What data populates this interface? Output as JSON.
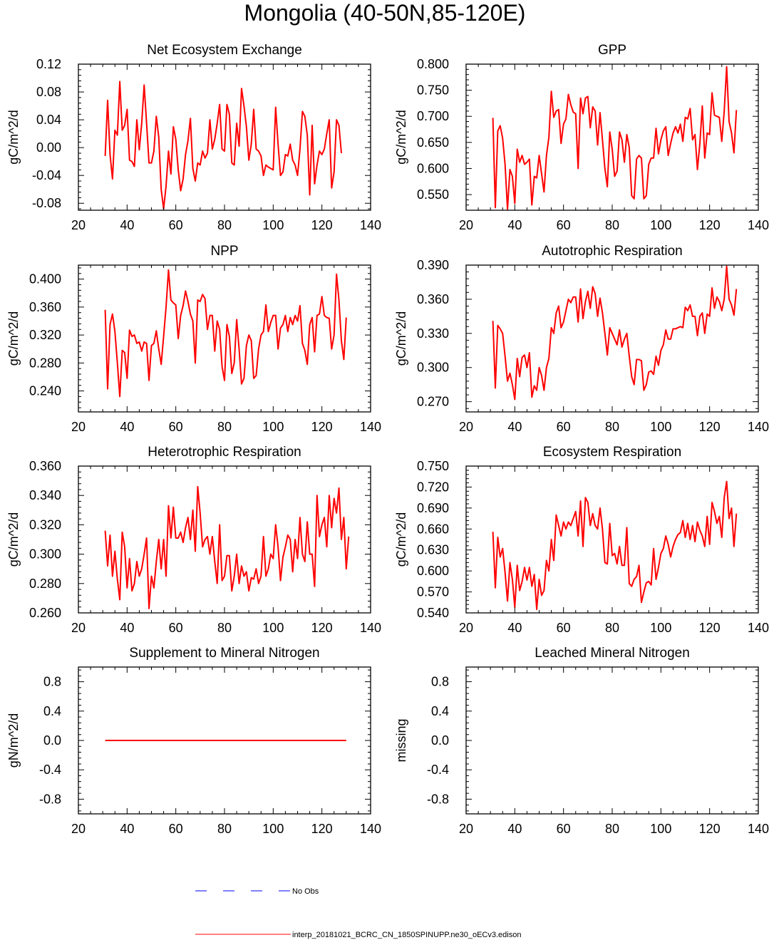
{
  "figure_title": "Mongolia (40-50N,85-120E)",
  "legend": [
    {
      "label": "No Obs",
      "color": "#0000ff",
      "dash": true
    },
    {
      "label": "interp_20181021_BCRC_CN_1850SPINUPP.ne30_oECv3.edison",
      "color": "#ff0000",
      "dash": false
    }
  ],
  "chart_data": [
    {
      "type": "line",
      "title": "Net Ecosystem Exchange",
      "xlabel": "",
      "ylabel": "gC/m^2/d",
      "xlim": [
        20,
        140
      ],
      "ylim": [
        -0.09,
        0.12
      ],
      "xticks": [
        20,
        40,
        60,
        80,
        100,
        120,
        140
      ],
      "xtick_labels": [
        "20",
        "40",
        "60",
        "80",
        "100",
        "120",
        "140"
      ],
      "yticks": [
        -0.08,
        -0.04,
        0.0,
        0.04,
        0.08,
        0.12
      ],
      "ytick_labels": [
        "-0.08",
        "-0.04",
        "0.00",
        "0.04",
        "0.08",
        "0.12"
      ],
      "series": [
        {
          "name": "interp_20181021_BCRC_CN_1850SPINUPP.ne30_oECv3.edison",
          "color": "#ff0000",
          "x0": 31,
          "values": [
            -0.012,
            0.068,
            -0.01,
            -0.045,
            0.025,
            0.018,
            0.095,
            0.025,
            0.032,
            0.055,
            -0.018,
            -0.02,
            -0.027,
            0.04,
            -0.003,
            0.035,
            0.09,
            0.035,
            -0.022,
            -0.022,
            -0.005,
            0.045,
            0.015,
            -0.06,
            -0.088,
            -0.055,
            -0.005,
            -0.038,
            0.03,
            0.012,
            -0.032,
            -0.062,
            -0.045,
            -0.01,
            0.01,
            0.042,
            -0.03,
            -0.048,
            -0.022,
            -0.025,
            -0.005,
            -0.015,
            -0.008,
            0.04,
            -0.002,
            0.012,
            0.035,
            0.062,
            -0.002,
            -0.005,
            0.062,
            0.048,
            -0.022,
            -0.025,
            0.035,
            0.002,
            0.085,
            0.06,
            0.03,
            -0.018,
            0.005,
            0.055,
            -0.002,
            -0.005,
            -0.012,
            -0.04,
            -0.025,
            -0.028,
            -0.03,
            -0.032,
            0.058,
            0.005,
            -0.04,
            -0.035,
            -0.01,
            -0.012,
            0.005,
            -0.018,
            -0.025,
            -0.04,
            -0.002,
            0.052,
            0.045,
            0.018,
            -0.068,
            0.032,
            -0.052,
            -0.025,
            -0.005,
            -0.01,
            -0.002,
            0.02,
            0.04,
            -0.058,
            -0.035,
            0.04,
            0.032,
            -0.008
          ]
        }
      ]
    },
    {
      "type": "line",
      "title": "GPP",
      "xlabel": "",
      "ylabel": "gC/m^2/d",
      "xlim": [
        20,
        140
      ],
      "ylim": [
        0.52,
        0.8
      ],
      "xticks": [
        20,
        40,
        60,
        80,
        100,
        120,
        140
      ],
      "xtick_labels": [
        "20",
        "40",
        "60",
        "80",
        "100",
        "120",
        "140"
      ],
      "yticks": [
        0.55,
        0.6,
        0.65,
        0.7,
        0.75,
        0.8
      ],
      "ytick_labels": [
        "0.550",
        "0.600",
        "0.650",
        "0.700",
        "0.750",
        "0.800"
      ],
      "series": [
        {
          "name": "interp_20181021_BCRC_CN_1850SPINUPP.ne30_oECv3.edison",
          "color": "#ff0000",
          "x0": 31,
          "values": [
            0.697,
            0.525,
            0.672,
            0.682,
            0.658,
            0.608,
            0.522,
            0.598,
            0.585,
            0.533,
            0.637,
            0.612,
            0.625,
            0.608,
            0.612,
            0.618,
            0.53,
            0.585,
            0.582,
            0.625,
            0.59,
            0.555,
            0.625,
            0.66,
            0.748,
            0.698,
            0.71,
            0.713,
            0.648,
            0.685,
            0.695,
            0.742,
            0.722,
            0.708,
            0.705,
            0.6,
            0.735,
            0.705,
            0.735,
            0.738,
            0.678,
            0.718,
            0.71,
            0.645,
            0.707,
            0.655,
            0.6,
            0.565,
            0.67,
            0.637,
            0.585,
            0.595,
            0.67,
            0.655,
            0.612,
            0.665,
            0.64,
            0.548,
            0.542,
            0.618,
            0.625,
            0.62,
            0.542,
            0.548,
            0.608,
            0.62,
            0.62,
            0.677,
            0.628,
            0.655,
            0.672,
            0.68,
            0.625,
            0.648,
            0.668,
            0.68,
            0.668,
            0.685,
            0.652,
            0.698,
            0.695,
            0.715,
            0.655,
            0.665,
            0.598,
            0.648,
            0.72,
            0.62,
            0.668,
            0.665,
            0.745,
            0.702,
            0.7,
            0.698,
            0.652,
            0.71,
            0.795,
            0.69,
            0.668,
            0.63,
            0.712
          ]
        }
      ]
    },
    {
      "type": "line",
      "title": "NPP",
      "xlabel": "",
      "ylabel": "gC/m^2/d",
      "xlim": [
        20,
        140
      ],
      "ylim": [
        0.21,
        0.42
      ],
      "xticks": [
        20,
        40,
        60,
        80,
        100,
        120,
        140
      ],
      "xtick_labels": [
        "20",
        "40",
        "60",
        "80",
        "100",
        "120",
        "140"
      ],
      "yticks": [
        0.24,
        0.28,
        0.32,
        0.36,
        0.4
      ],
      "ytick_labels": [
        "0.240",
        "0.280",
        "0.320",
        "0.360",
        "0.400"
      ],
      "series": [
        {
          "name": "interp_20181021_BCRC_CN_1850SPINUPP.ne30_oECv3.edison",
          "color": "#ff0000",
          "x0": 31,
          "values": [
            0.356,
            0.243,
            0.335,
            0.35,
            0.325,
            0.28,
            0.232,
            0.298,
            0.295,
            0.258,
            0.327,
            0.318,
            0.32,
            0.308,
            0.31,
            0.297,
            0.31,
            0.308,
            0.255,
            0.305,
            0.308,
            0.326,
            0.3,
            0.278,
            0.318,
            0.36,
            0.413,
            0.37,
            0.366,
            0.363,
            0.315,
            0.348,
            0.362,
            0.383,
            0.368,
            0.35,
            0.34,
            0.28,
            0.37,
            0.368,
            0.378,
            0.372,
            0.328,
            0.348,
            0.348,
            0.297,
            0.34,
            0.328,
            0.275,
            0.255,
            0.335,
            0.318,
            0.265,
            0.28,
            0.342,
            0.3,
            0.25,
            0.258,
            0.305,
            0.32,
            0.312,
            0.258,
            0.262,
            0.3,
            0.32,
            0.325,
            0.363,
            0.325,
            0.338,
            0.348,
            0.348,
            0.3,
            0.33,
            0.335,
            0.348,
            0.325,
            0.345,
            0.335,
            0.348,
            0.34,
            0.362,
            0.308,
            0.298,
            0.278,
            0.335,
            0.345,
            0.296,
            0.348,
            0.35,
            0.375,
            0.348,
            0.345,
            0.344,
            0.3,
            0.32,
            0.407,
            0.37,
            0.312,
            0.285,
            0.345
          ]
        }
      ]
    },
    {
      "type": "line",
      "title": "Autotrophic Respiration",
      "xlabel": "",
      "ylabel": "gC/m^2/d",
      "xlim": [
        20,
        140
      ],
      "ylim": [
        0.261,
        0.39
      ],
      "xticks": [
        20,
        40,
        60,
        80,
        100,
        120,
        140
      ],
      "xtick_labels": [
        "20",
        "40",
        "60",
        "80",
        "100",
        "120",
        "140"
      ],
      "yticks": [
        0.27,
        0.3,
        0.33,
        0.36,
        0.39
      ],
      "ytick_labels": [
        "0.270",
        "0.300",
        "0.330",
        "0.360",
        "0.390"
      ],
      "series": [
        {
          "name": "interp_20181021_BCRC_CN_1850SPINUPP.ne30_oECv3.edison",
          "color": "#ff0000",
          "x0": 31,
          "values": [
            0.341,
            0.282,
            0.337,
            0.334,
            0.33,
            0.31,
            0.288,
            0.295,
            0.285,
            0.272,
            0.308,
            0.292,
            0.309,
            0.311,
            0.3,
            0.313,
            0.274,
            0.284,
            0.28,
            0.3,
            0.293,
            0.28,
            0.3,
            0.308,
            0.335,
            0.33,
            0.348,
            0.354,
            0.335,
            0.34,
            0.35,
            0.36,
            0.357,
            0.362,
            0.362,
            0.34,
            0.369,
            0.343,
            0.358,
            0.367,
            0.352,
            0.371,
            0.365,
            0.345,
            0.361,
            0.348,
            0.33,
            0.311,
            0.335,
            0.33,
            0.325,
            0.32,
            0.333,
            0.318,
            0.325,
            0.33,
            0.31,
            0.292,
            0.285,
            0.307,
            0.307,
            0.306,
            0.28,
            0.285,
            0.296,
            0.297,
            0.294,
            0.31,
            0.302,
            0.315,
            0.32,
            0.333,
            0.325,
            0.325,
            0.334,
            0.334,
            0.335,
            0.336,
            0.335,
            0.353,
            0.35,
            0.355,
            0.345,
            0.345,
            0.328,
            0.345,
            0.348,
            0.33,
            0.347,
            0.345,
            0.37,
            0.352,
            0.362,
            0.358,
            0.35,
            0.36,
            0.389,
            0.36,
            0.355,
            0.346,
            0.369
          ]
        }
      ]
    },
    {
      "type": "line",
      "title": "Heterotrophic Respiration",
      "xlabel": "",
      "ylabel": "gC/m^2/d",
      "xlim": [
        20,
        140
      ],
      "ylim": [
        0.26,
        0.36
      ],
      "xticks": [
        20,
        40,
        60,
        80,
        100,
        120,
        140
      ],
      "xtick_labels": [
        "20",
        "40",
        "60",
        "80",
        "100",
        "120",
        "140"
      ],
      "yticks": [
        0.26,
        0.28,
        0.3,
        0.32,
        0.34,
        0.36
      ],
      "ytick_labels": [
        "0.260",
        "0.280",
        "0.300",
        "0.320",
        "0.340",
        "0.360"
      ],
      "series": [
        {
          "name": "interp_20181021_BCRC_CN_1850SPINUPP.ne30_oECv3.edison",
          "color": "#ff0000",
          "x0": 31,
          "values": [
            0.316,
            0.292,
            0.313,
            0.285,
            0.302,
            0.283,
            0.269,
            0.315,
            0.305,
            0.277,
            0.297,
            0.275,
            0.28,
            0.295,
            0.285,
            0.29,
            0.3,
            0.311,
            0.263,
            0.285,
            0.277,
            0.295,
            0.31,
            0.29,
            0.31,
            0.285,
            0.333,
            0.311,
            0.332,
            0.311,
            0.311,
            0.315,
            0.308,
            0.318,
            0.325,
            0.31,
            0.33,
            0.302,
            0.346,
            0.328,
            0.305,
            0.31,
            0.312,
            0.3,
            0.312,
            0.295,
            0.28,
            0.32,
            0.282,
            0.285,
            0.299,
            0.299,
            0.275,
            0.285,
            0.3,
            0.28,
            0.292,
            0.285,
            0.288,
            0.275,
            0.284,
            0.283,
            0.29,
            0.28,
            0.285,
            0.312,
            0.285,
            0.29,
            0.3,
            0.297,
            0.32,
            0.305,
            0.282,
            0.298,
            0.305,
            0.313,
            0.31,
            0.288,
            0.31,
            0.297,
            0.325,
            0.3,
            0.295,
            0.322,
            0.3,
            0.3,
            0.278,
            0.34,
            0.312,
            0.32,
            0.325,
            0.305,
            0.34,
            0.318,
            0.338,
            0.328,
            0.345,
            0.31,
            0.325,
            0.29,
            0.312
          ]
        }
      ]
    },
    {
      "type": "line",
      "title": "Ecosystem Respiration",
      "xlabel": "",
      "ylabel": "gC/m^2/d",
      "xlim": [
        20,
        140
      ],
      "ylim": [
        0.54,
        0.75
      ],
      "xticks": [
        20,
        40,
        60,
        80,
        100,
        120,
        140
      ],
      "xtick_labels": [
        "20",
        "40",
        "60",
        "80",
        "100",
        "120",
        "140"
      ],
      "yticks": [
        0.54,
        0.57,
        0.6,
        0.63,
        0.66,
        0.69,
        0.72,
        0.75
      ],
      "ytick_labels": [
        "0.540",
        "0.570",
        "0.600",
        "0.630",
        "0.660",
        "0.690",
        "0.720",
        "0.750"
      ],
      "series": [
        {
          "name": "interp_20181021_BCRC_CN_1850SPINUPP.ne30_oECv3.edison",
          "color": "#ff0000",
          "x0": 31,
          "values": [
            0.656,
            0.576,
            0.648,
            0.62,
            0.632,
            0.598,
            0.557,
            0.612,
            0.588,
            0.548,
            0.608,
            0.572,
            0.585,
            0.605,
            0.587,
            0.605,
            0.578,
            0.595,
            0.545,
            0.588,
            0.565,
            0.572,
            0.615,
            0.6,
            0.645,
            0.615,
            0.68,
            0.665,
            0.65,
            0.67,
            0.66,
            0.67,
            0.665,
            0.675,
            0.685,
            0.65,
            0.7,
            0.635,
            0.705,
            0.698,
            0.665,
            0.682,
            0.665,
            0.66,
            0.69,
            0.66,
            0.612,
            0.61,
            0.668,
            0.622,
            0.625,
            0.61,
            0.635,
            0.608,
            0.608,
            0.662,
            0.582,
            0.578,
            0.588,
            0.592,
            0.608,
            0.555,
            0.57,
            0.583,
            0.585,
            0.58,
            0.632,
            0.588,
            0.605,
            0.625,
            0.632,
            0.65,
            0.638,
            0.62,
            0.635,
            0.645,
            0.652,
            0.655,
            0.672,
            0.648,
            0.668,
            0.645,
            0.665,
            0.642,
            0.67,
            0.658,
            0.65,
            0.635,
            0.678,
            0.638,
            0.698,
            0.685,
            0.668,
            0.678,
            0.648,
            0.705,
            0.728,
            0.675,
            0.69,
            0.635,
            0.682
          ]
        }
      ]
    },
    {
      "type": "line",
      "title": "Supplement to Mineral Nitrogen",
      "xlabel": "",
      "ylabel": "gN/m^2/d",
      "xlim": [
        20,
        140
      ],
      "ylim": [
        -1.0,
        1.0
      ],
      "xticks": [
        20,
        40,
        60,
        80,
        100,
        120,
        140
      ],
      "xtick_labels": [
        "20",
        "40",
        "60",
        "80",
        "100",
        "120",
        "140"
      ],
      "yticks": [
        -0.8,
        -0.4,
        0.0,
        0.4,
        0.8
      ],
      "ytick_labels": [
        "-0.8",
        "-0.4",
        "0.0",
        "0.4",
        "0.8"
      ],
      "series": [
        {
          "name": "interp_20181021_BCRC_CN_1850SPINUPP.ne30_oECv3.edison",
          "color": "#ff0000",
          "x": [
            31,
            130
          ],
          "values": [
            0.0,
            0.0
          ]
        }
      ]
    },
    {
      "type": "line",
      "title": "Leached Mineral Nitrogen",
      "xlabel": "",
      "ylabel": "missing",
      "xlim": [
        20,
        140
      ],
      "ylim": [
        -1.0,
        1.0
      ],
      "xticks": [
        20,
        40,
        60,
        80,
        100,
        120,
        140
      ],
      "xtick_labels": [
        "20",
        "40",
        "60",
        "80",
        "100",
        "120",
        "140"
      ],
      "yticks": [
        -0.8,
        -0.4,
        0.0,
        0.4,
        0.8
      ],
      "ytick_labels": [
        "-0.8",
        "-0.4",
        "0.0",
        "0.4",
        "0.8"
      ],
      "series": []
    }
  ]
}
